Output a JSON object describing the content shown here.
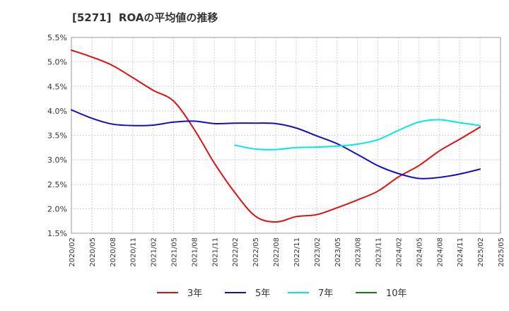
{
  "chart_data": {
    "type": "line",
    "title": "[5271]  ROAの平均値の推移",
    "xlabel": "",
    "ylabel": "",
    "ylim": [
      1.5,
      5.5
    ],
    "yticks": [
      "1.5%",
      "2.0%",
      "2.5%",
      "3.0%",
      "3.5%",
      "4.0%",
      "4.5%",
      "5.0%",
      "5.5%"
    ],
    "ytick_values": [
      1.5,
      2.0,
      2.5,
      3.0,
      3.5,
      4.0,
      4.5,
      5.0,
      5.5
    ],
    "x": [
      "2020/02",
      "2020/05",
      "2020/08",
      "2020/11",
      "2021/02",
      "2021/05",
      "2021/08",
      "2021/11",
      "2022/02",
      "2022/05",
      "2022/08",
      "2022/11",
      "2023/02",
      "2023/05",
      "2023/08",
      "2023/11",
      "2024/02",
      "2024/05",
      "2024/08",
      "2024/11",
      "2025/02",
      "2025/05"
    ],
    "grid": true,
    "legend_position": "bottom",
    "series": [
      {
        "name": "3年",
        "color": "#e01010",
        "values": [
          5.24,
          5.1,
          4.93,
          4.68,
          4.42,
          4.2,
          3.63,
          2.93,
          2.33,
          1.85,
          1.73,
          1.84,
          1.88,
          2.02,
          2.18,
          2.36,
          2.65,
          2.88,
          3.18,
          3.42,
          3.67,
          null
        ]
      },
      {
        "name": "5年",
        "color": "#1010c0",
        "values": [
          4.02,
          3.85,
          3.73,
          3.7,
          3.71,
          3.77,
          3.79,
          3.74,
          3.75,
          3.75,
          3.74,
          3.65,
          3.49,
          3.33,
          3.11,
          2.88,
          2.72,
          2.62,
          2.64,
          2.71,
          2.81,
          null
        ]
      },
      {
        "name": "7年",
        "color": "#00e8e8",
        "values": [
          null,
          null,
          null,
          null,
          null,
          null,
          null,
          null,
          3.3,
          3.22,
          3.21,
          3.25,
          3.26,
          3.28,
          3.32,
          3.41,
          3.6,
          3.77,
          3.82,
          3.76,
          3.7,
          null
        ]
      },
      {
        "name": "10年",
        "color": "#108010",
        "values": [
          null,
          null,
          null,
          null,
          null,
          null,
          null,
          null,
          null,
          null,
          null,
          null,
          null,
          null,
          null,
          null,
          null,
          null,
          null,
          null,
          null,
          null
        ]
      }
    ]
  }
}
